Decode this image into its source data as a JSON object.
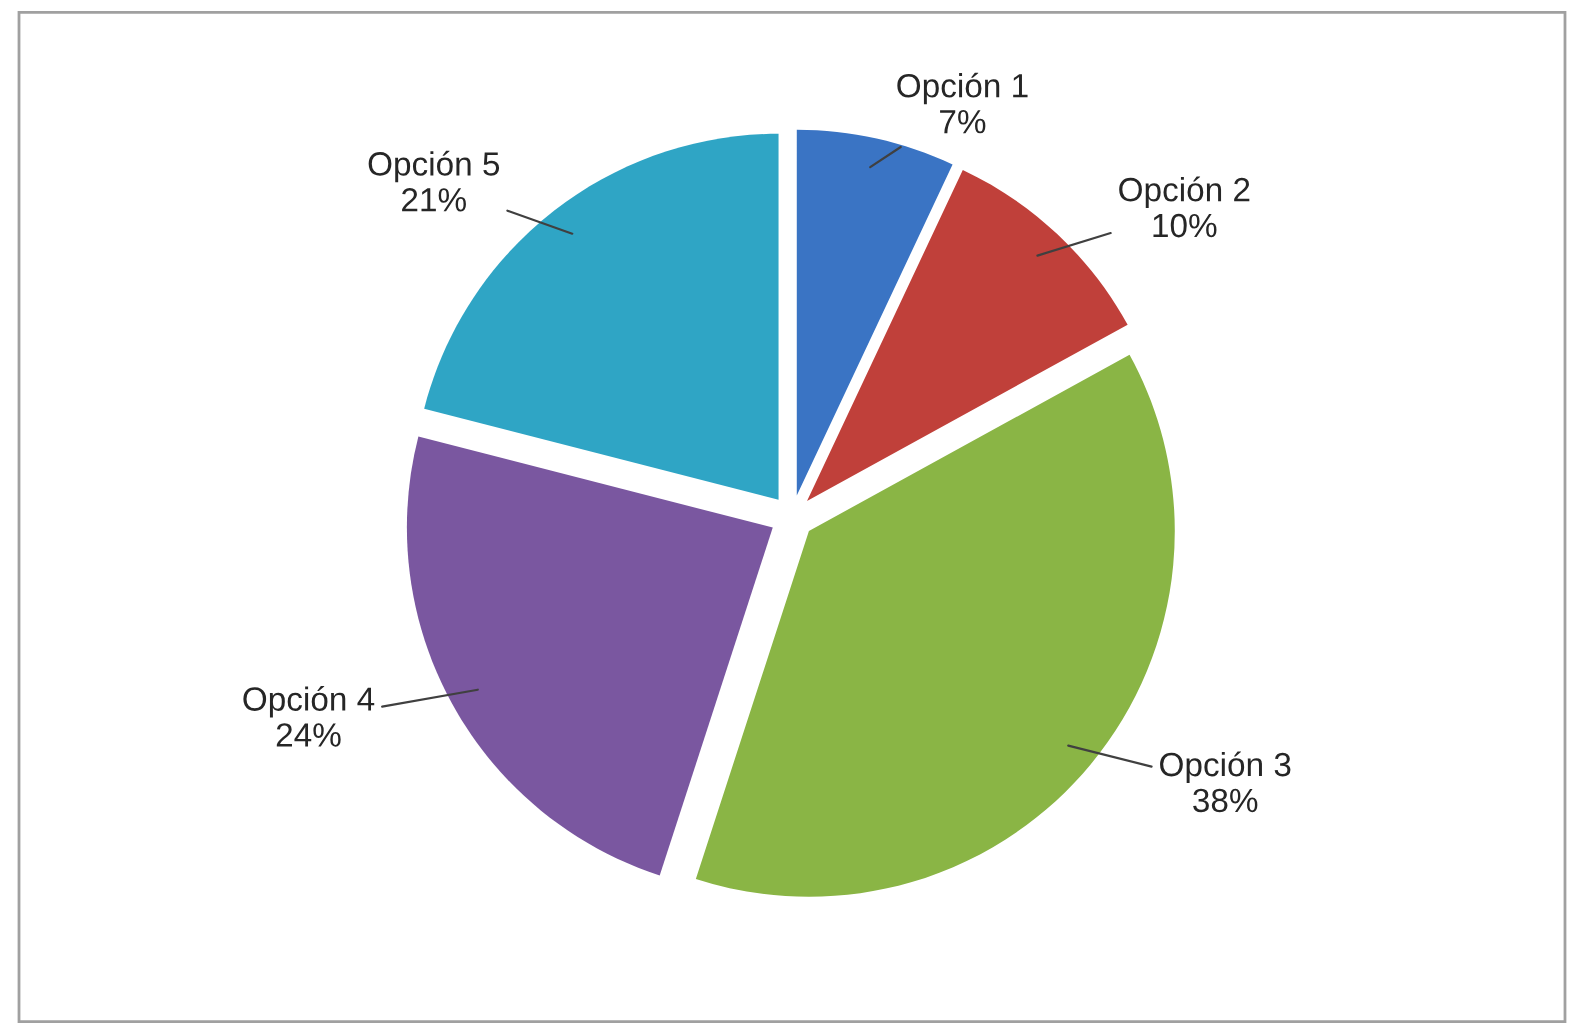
{
  "chart_data": {
    "type": "pie",
    "categories": [
      "Opción 1",
      "Opción 2",
      "Opción 3",
      "Opción 4",
      "Opción 5"
    ],
    "values": [
      7,
      10,
      38,
      24,
      21
    ],
    "value_labels": [
      "7%",
      "10%",
      "38%",
      "24%",
      "21%"
    ],
    "colors": [
      "#3a74c4",
      "#c0403a",
      "#8ab545",
      "#7a57a0",
      "#2fa5c5"
    ],
    "legend": false
  }
}
